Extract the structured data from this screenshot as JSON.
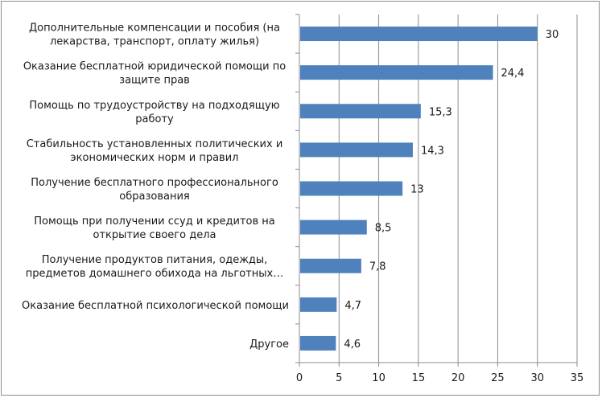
{
  "chart_data": {
    "type": "bar",
    "orientation": "horizontal",
    "title": "",
    "xlabel": "",
    "ylabel": "",
    "xlim": [
      0,
      35
    ],
    "ticks": [
      "0",
      "5",
      "10",
      "15",
      "20",
      "25",
      "30",
      "35"
    ],
    "grid": true,
    "legend": "none",
    "bar_color": "#4f81bd",
    "categories": [
      [
        "Дополнительные компенсации и пособия (на",
        "лекарства, транспорт, оплату жилья)"
      ],
      [
        "Оказание бесплатной юридической помощи по",
        "защите прав"
      ],
      [
        "Помощь по трудоустройству на подходящую",
        "работу"
      ],
      [
        "Стабильность установленных политических и",
        "экономических норм и правил"
      ],
      [
        "Получение бесплатного профессионального",
        "образования"
      ],
      [
        "Помощь при получении ссуд и кредитов на",
        "открытие своего дела"
      ],
      [
        "Получение продуктов питания, одежды,",
        "предметов домашнего обихода на льготных…"
      ],
      [
        "Оказание бесплатной психологической помощи"
      ],
      [
        "Другое"
      ]
    ],
    "values": [
      30,
      24.4,
      15.3,
      14.3,
      13,
      8.5,
      7.8,
      4.7,
      4.6
    ],
    "value_labels": [
      "30",
      "24,4",
      "15,3",
      "14,3",
      "13",
      "8,5",
      "7,8",
      "4,7",
      "4,6"
    ]
  }
}
